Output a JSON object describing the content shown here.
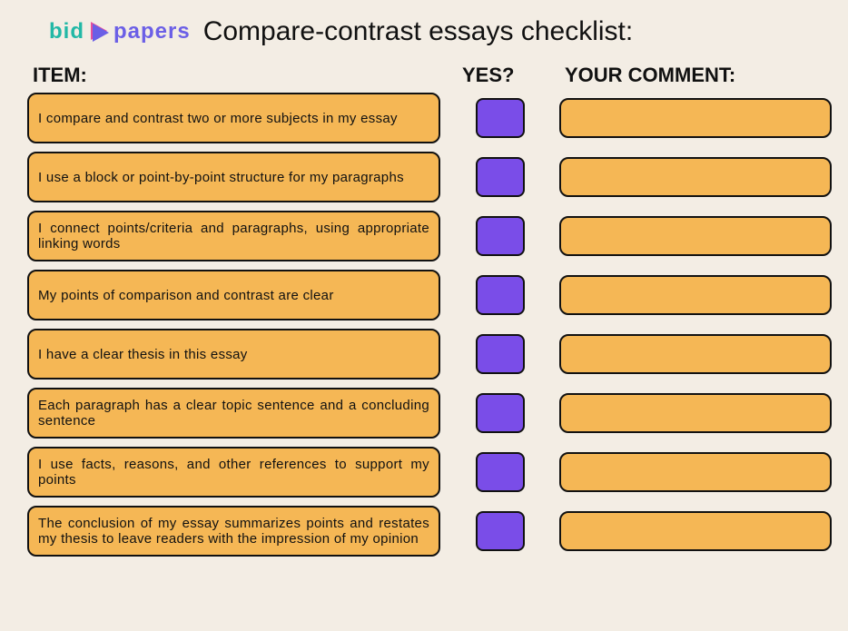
{
  "logo": {
    "bid": "bid",
    "papers": "papers"
  },
  "title": "Compare-contrast essays checklist:",
  "columns": {
    "item": "ITEM:",
    "yes": "YES?",
    "comment": "YOUR COMMENT:"
  },
  "styling": {
    "background_color": "#f3ede4",
    "item_box_color": "#f5b755",
    "yes_box_color": "#7a4de8",
    "comment_box_color": "#f5b755",
    "border_color": "#111111",
    "border_radius": 10,
    "logo_bid_color": "#22b8a6",
    "logo_papers_color": "#6b5fe6",
    "logo_four_pink": "#e84f9c",
    "logo_four_purple": "#6b5fe6"
  },
  "items": [
    "I compare and contrast two or more subjects in my essay",
    "I use a block or point-by-point structure for my paragraphs",
    "I connect points/criteria and paragraphs, using appropriate linking words",
    "My points of comparison and contrast are clear",
    "I have a clear thesis in this essay",
    "Each paragraph has a clear topic sentence and a concluding sentence",
    "I use facts, reasons, and other references to support my points",
    "The conclusion of my essay summarizes points and restates my thesis to leave readers with the impression of my opinion"
  ]
}
